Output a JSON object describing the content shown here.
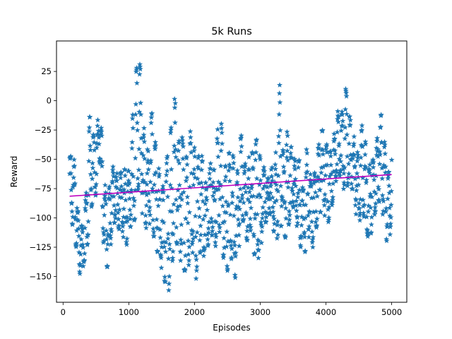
{
  "chart_data": {
    "type": "scatter",
    "title": "5k Runs",
    "xlabel": "Episodes",
    "ylabel": "Reward",
    "xlim": [
      -100,
      5230
    ],
    "ylim": [
      -172,
      51
    ],
    "x_ticks": [
      0,
      1000,
      2000,
      3000,
      4000,
      5000
    ],
    "y_ticks": [
      25,
      0,
      -25,
      -50,
      -75,
      -100,
      -125,
      -150
    ],
    "x_tick_labels": [
      "0",
      "1000",
      "2000",
      "3000",
      "4000",
      "5000"
    ],
    "y_tick_labels": [
      "25",
      "0",
      "−25",
      "−50",
      "−75",
      "−100",
      "−125",
      "−150"
    ],
    "grid": false,
    "legend": "none",
    "marker": "star",
    "colors": {
      "scatter": "#1f77b4",
      "trend": "#bf00bf"
    },
    "scatter_profile": {
      "x": [
        100,
        150,
        200,
        250,
        300,
        350,
        400,
        450,
        500,
        550,
        600,
        650,
        700,
        750,
        800,
        850,
        900,
        950,
        1000,
        1050,
        1100,
        1150,
        1200,
        1250,
        1300,
        1350,
        1400,
        1450,
        1500,
        1550,
        1600,
        1650,
        1700,
        1750,
        1800,
        1850,
        1900,
        1950,
        2000,
        2050,
        2100,
        2150,
        2200,
        2250,
        2300,
        2350,
        2400,
        2450,
        2500,
        2550,
        2600,
        2650,
        2700,
        2750,
        2800,
        2850,
        2900,
        2950,
        3000,
        3050,
        3100,
        3150,
        3200,
        3250,
        3300,
        3350,
        3400,
        3450,
        3500,
        3550,
        3600,
        3650,
        3700,
        3750,
        3800,
        3850,
        3900,
        3950,
        4000,
        4050,
        4100,
        4150,
        4200,
        4250,
        4300,
        4350,
        4400,
        4450,
        4500,
        4550,
        4600,
        4650,
        4700,
        4750,
        4800,
        4850,
        4900,
        4950,
        5000
      ],
      "y_high": [
        -50,
        -42,
        -65,
        -110,
        -105,
        -80,
        -12,
        -25,
        -40,
        2,
        -40,
        -80,
        -75,
        -55,
        -60,
        -65,
        -55,
        -60,
        -60,
        -20,
        20,
        40,
        15,
        -45,
        -40,
        -10,
        -30,
        -50,
        -85,
        -55,
        -45,
        -20,
        5,
        -40,
        -20,
        -40,
        -55,
        -15,
        -40,
        -50,
        -40,
        -70,
        -70,
        -45,
        -60,
        -25,
        -12,
        -60,
        -50,
        -40,
        -50,
        -60,
        -25,
        -45,
        -65,
        -35,
        -50,
        -30,
        -50,
        -55,
        -70,
        -60,
        -55,
        -40,
        18,
        -45,
        -25,
        -35,
        -45,
        -55,
        -50,
        -75,
        -40,
        -60,
        -70,
        -55,
        -30,
        -25,
        -35,
        -45,
        -40,
        -15,
        -5,
        -10,
        10,
        -10,
        -25,
        -35,
        -50,
        -20,
        -35,
        -60,
        -45,
        -50,
        -20,
        -10,
        -40,
        -55,
        -45
      ],
      "y_low": [
        -85,
        -110,
        -125,
        -148,
        -145,
        -140,
        -100,
        -85,
        -80,
        -50,
        -115,
        -140,
        -145,
        -105,
        -105,
        -110,
        -110,
        -130,
        -110,
        -105,
        -100,
        -70,
        -95,
        -110,
        -105,
        -105,
        -125,
        -130,
        -145,
        -155,
        -165,
        -145,
        -115,
        -125,
        -140,
        -145,
        -145,
        -125,
        -165,
        -140,
        -125,
        -135,
        -125,
        -110,
        -130,
        -115,
        -110,
        -140,
        -145,
        -130,
        -155,
        -145,
        -110,
        -100,
        -120,
        -110,
        -130,
        -135,
        -140,
        -100,
        -105,
        -95,
        -110,
        -120,
        -105,
        -110,
        -120,
        -100,
        -90,
        -105,
        -120,
        -135,
        -125,
        -115,
        -125,
        -110,
        -95,
        -95,
        -100,
        -110,
        -85,
        -70,
        -70,
        -80,
        -70,
        -80,
        -75,
        -95,
        -110,
        -90,
        -105,
        -120,
        -110,
        -95,
        -85,
        -90,
        -115,
        -125,
        -110
      ]
    },
    "trend_line": {
      "x": [
        100,
        5000
      ],
      "y": [
        -81.5,
        -63
      ]
    }
  }
}
